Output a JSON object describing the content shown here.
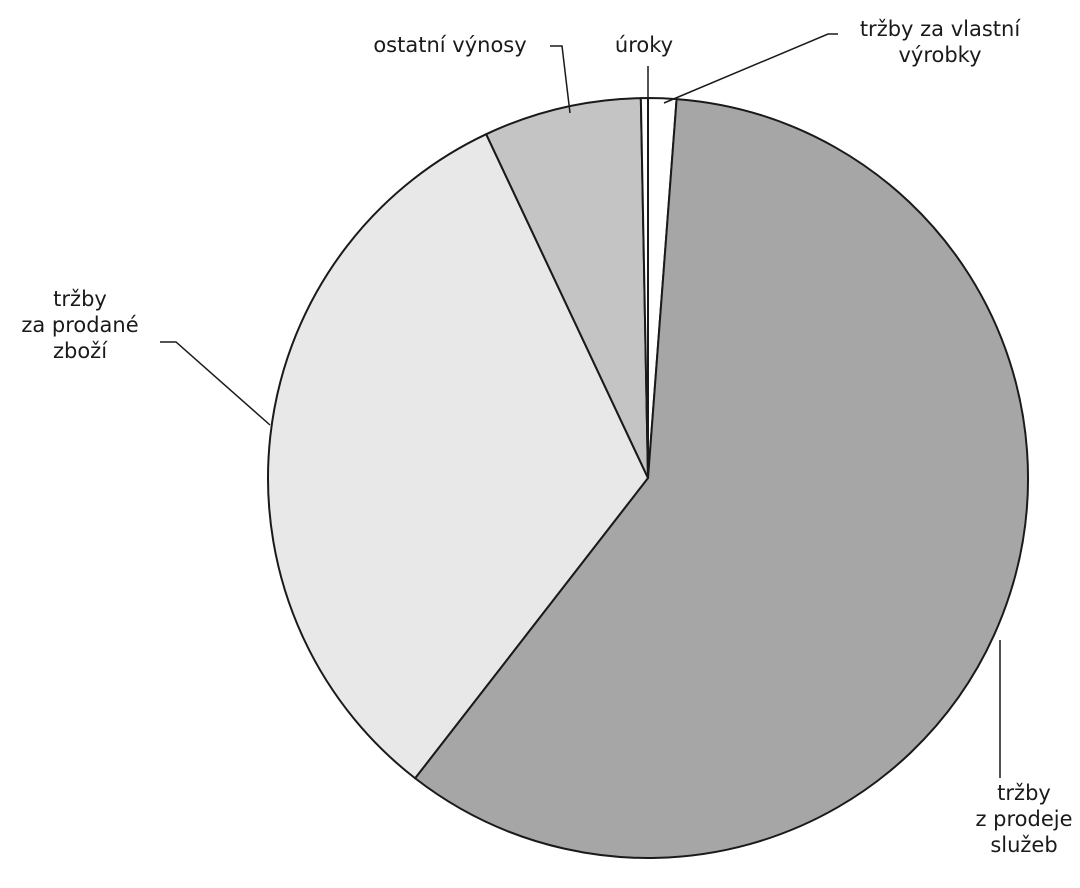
{
  "chart_data": {
    "type": "pie",
    "title": "",
    "slices": [
      {
        "label": "tržby za vlastní výrobky",
        "lines": [
          "tržby za vlastní",
          "výrobky"
        ],
        "value": 1.2,
        "color": "#ffffff"
      },
      {
        "label": "tržby z prodeje služeb",
        "lines": [
          "tržby",
          "z prodeje",
          "služeb"
        ],
        "value": 59.3,
        "color": "#a6a6a6"
      },
      {
        "label": "tržby za prodané zboží",
        "lines": [
          "tržby",
          "za prodané",
          "zboží"
        ],
        "value": 32.5,
        "color": "#e8e8e8"
      },
      {
        "label": "ostatní výnosy",
        "lines": [
          "ostatní výnosy"
        ],
        "value": 6.7,
        "color": "#c4c4c4"
      },
      {
        "label": "úroky",
        "lines": [
          "úroky"
        ],
        "value": 0.3,
        "color": "#ffffff"
      }
    ],
    "legend": "none"
  }
}
